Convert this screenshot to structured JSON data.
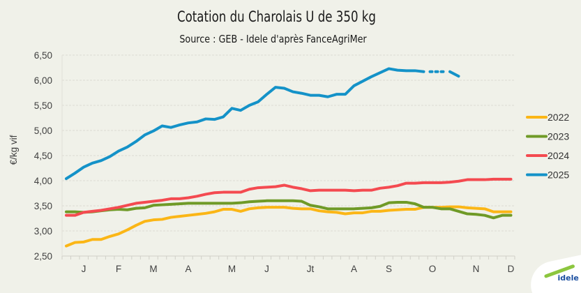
{
  "chart_data": {
    "type": "line",
    "title": "Cotation du Charolais U de 350 kg",
    "subtitle": "Source : GEB - Idele d'après FanceAgriMer",
    "ylabel": "€/kg vif",
    "xlabel": "",
    "ylim": [
      2.5,
      6.5
    ],
    "yticks": [
      "2,50",
      "3,00",
      "3,50",
      "4,00",
      "4,50",
      "5,00",
      "5,50",
      "6,00",
      "6,50"
    ],
    "ytick_values": [
      2.5,
      3.0,
      3.5,
      4.0,
      4.5,
      5.0,
      5.5,
      6.0,
      6.5
    ],
    "x_unit": "week index (0-51)",
    "month_labels": [
      {
        "label": "J",
        "week": 2
      },
      {
        "label": "F",
        "week": 6
      },
      {
        "label": "M",
        "week": 10
      },
      {
        "label": "A",
        "week": 14
      },
      {
        "label": "M",
        "week": 19
      },
      {
        "label": "J",
        "week": 23
      },
      {
        "label": "Jt",
        "week": 28
      },
      {
        "label": "A",
        "week": 33
      },
      {
        "label": "S",
        "week": 37
      },
      {
        "label": "O",
        "week": 42
      },
      {
        "label": "N",
        "week": 47
      },
      {
        "label": "D",
        "week": 51
      }
    ],
    "grid": true,
    "legend_position": "right",
    "series": [
      {
        "name": "2022",
        "color": "#fbb616",
        "values": [
          2.7,
          2.77,
          2.78,
          2.83,
          2.83,
          2.89,
          2.94,
          3.02,
          3.11,
          3.19,
          3.22,
          3.23,
          3.27,
          3.29,
          3.31,
          3.33,
          3.35,
          3.38,
          3.43,
          3.43,
          3.39,
          3.44,
          3.46,
          3.47,
          3.47,
          3.47,
          3.45,
          3.44,
          3.44,
          3.4,
          3.38,
          3.37,
          3.34,
          3.36,
          3.36,
          3.39,
          3.39,
          3.41,
          3.42,
          3.43,
          3.43,
          3.47,
          3.47,
          3.47,
          3.48,
          3.48,
          3.46,
          3.45,
          3.44,
          3.38,
          3.38,
          3.38
        ]
      },
      {
        "name": "2023",
        "color": "#6f9a27",
        "values": [
          3.38,
          3.38,
          3.37,
          3.38,
          3.4,
          3.42,
          3.43,
          3.42,
          3.45,
          3.46,
          3.51,
          3.52,
          3.53,
          3.54,
          3.55,
          3.55,
          3.55,
          3.55,
          3.55,
          3.55,
          3.56,
          3.58,
          3.59,
          3.6,
          3.6,
          3.6,
          3.6,
          3.59,
          3.51,
          3.48,
          3.44,
          3.44,
          3.44,
          3.44,
          3.45,
          3.46,
          3.49,
          3.56,
          3.57,
          3.57,
          3.54,
          3.47,
          3.47,
          3.44,
          3.44,
          3.39,
          3.34,
          3.33,
          3.31,
          3.26,
          3.31,
          3.31
        ]
      },
      {
        "name": "2024",
        "color": "#f44a50",
        "values": [
          3.31,
          3.31,
          3.37,
          3.39,
          3.41,
          3.44,
          3.47,
          3.51,
          3.55,
          3.57,
          3.59,
          3.61,
          3.64,
          3.64,
          3.66,
          3.69,
          3.73,
          3.76,
          3.77,
          3.77,
          3.77,
          3.83,
          3.86,
          3.87,
          3.88,
          3.91,
          3.87,
          3.84,
          3.8,
          3.81,
          3.81,
          3.81,
          3.81,
          3.8,
          3.81,
          3.81,
          3.85,
          3.87,
          3.9,
          3.95,
          3.95,
          3.96,
          3.96,
          3.96,
          3.97,
          3.99,
          4.02,
          4.02,
          4.02,
          4.03,
          4.03,
          4.03
        ]
      },
      {
        "name": "2025",
        "color": "#1492c8",
        "values": [
          4.04,
          4.15,
          4.27,
          4.35,
          4.4,
          4.48,
          4.59,
          4.67,
          4.78,
          4.91,
          4.99,
          5.09,
          5.06,
          5.11,
          5.15,
          5.17,
          5.23,
          5.22,
          5.27,
          5.44,
          5.4,
          5.5,
          5.57,
          5.72,
          5.86,
          5.84,
          5.77,
          5.74,
          5.7,
          5.7,
          5.67,
          5.72,
          5.72,
          5.89,
          5.98,
          6.07,
          6.15,
          6.23,
          6.2,
          6.19,
          6.19,
          6.17,
          null,
          null,
          6.17,
          6.08
        ]
      }
    ]
  },
  "logo": {
    "text": "idele",
    "subtext": "INSTITUT DE L'ÉLEVAGE"
  }
}
